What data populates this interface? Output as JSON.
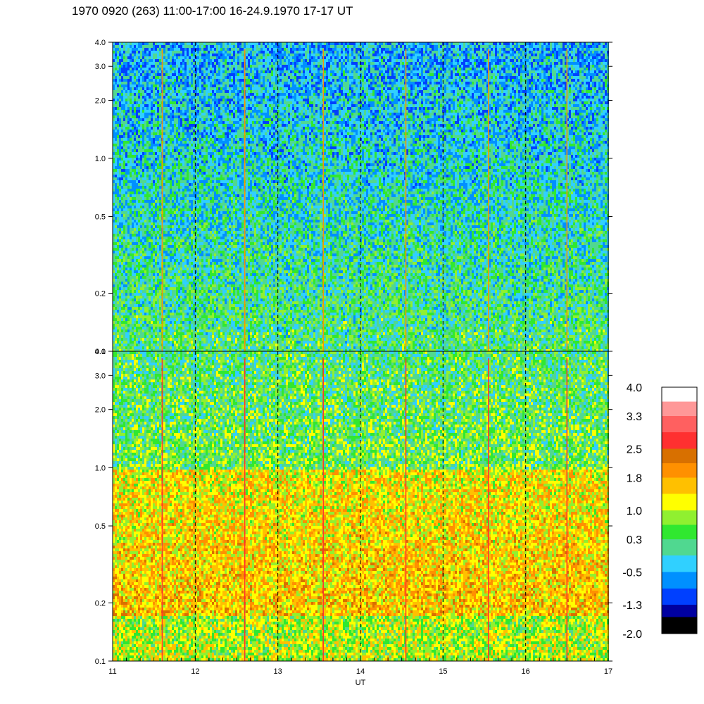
{
  "chart_data": {
    "type": "heatmap",
    "title": "1970 0920 (263) 11:00-17:00 16-24.9.1970  17-17 UT",
    "xlabel": "UT",
    "xlim": [
      11,
      17
    ],
    "x_ticks": [
      "11",
      "12",
      "13",
      "14",
      "15",
      "16",
      "17"
    ],
    "x_tick_values": [
      11,
      12,
      13,
      14,
      15,
      16,
      17
    ],
    "vertical_dashed_lines_at": [
      12,
      13,
      14,
      15,
      16
    ],
    "y_scale": "log",
    "panels": [
      {
        "ylim": [
          0.1,
          4.0
        ],
        "y_ticks": [
          "0.1",
          "0.2",
          "0.5",
          "1.0",
          "2.0",
          "3.0",
          "4.0"
        ],
        "y_tick_values": [
          0.1,
          0.2,
          0.5,
          1.0,
          2.0,
          3.0,
          4.0
        ],
        "dominant_level_low": 0.3,
        "dominant_level_high": -0.5,
        "burst_times": [
          11.6,
          12.6,
          13.55,
          14.55,
          15.55,
          16.5
        ]
      },
      {
        "ylim": [
          0.1,
          4.0
        ],
        "y_ticks": [
          "0.1",
          "0.2",
          "0.5",
          "1.0",
          "2.0",
          "3.0",
          "4.0"
        ],
        "y_tick_values": [
          0.1,
          0.2,
          0.5,
          1.0,
          2.0,
          3.0,
          4.0
        ],
        "dominant_level_low": 1.0,
        "dominant_level_high": 0.3,
        "burst_times": [
          11.6,
          12.6,
          13.55,
          14.55,
          15.55,
          16.5
        ]
      }
    ],
    "colorbar": {
      "levels": [
        -2.0,
        -1.6,
        -1.3,
        -0.9,
        -0.5,
        -0.1,
        0.3,
        0.65,
        1.0,
        1.4,
        1.8,
        2.15,
        2.5,
        2.9,
        3.3,
        3.65,
        4.0
      ],
      "tick_labels": [
        "4.0",
        "3.3",
        "2.5",
        "1.8",
        "1.0",
        "0.3",
        "-0.5",
        "-1.3",
        "-2.0"
      ],
      "tick_values": [
        4.0,
        3.3,
        2.5,
        1.8,
        1.0,
        0.3,
        -0.5,
        -1.3,
        -2.0
      ],
      "colors": [
        "#000000",
        "#0000a0",
        "#0040ff",
        "#0090ff",
        "#30d0ff",
        "#50d890",
        "#30e830",
        "#90f030",
        "#ffff00",
        "#ffc000",
        "#ff9000",
        "#d87000",
        "#ff3030",
        "#ff6060",
        "#ff9898",
        "#ffffff"
      ]
    }
  }
}
